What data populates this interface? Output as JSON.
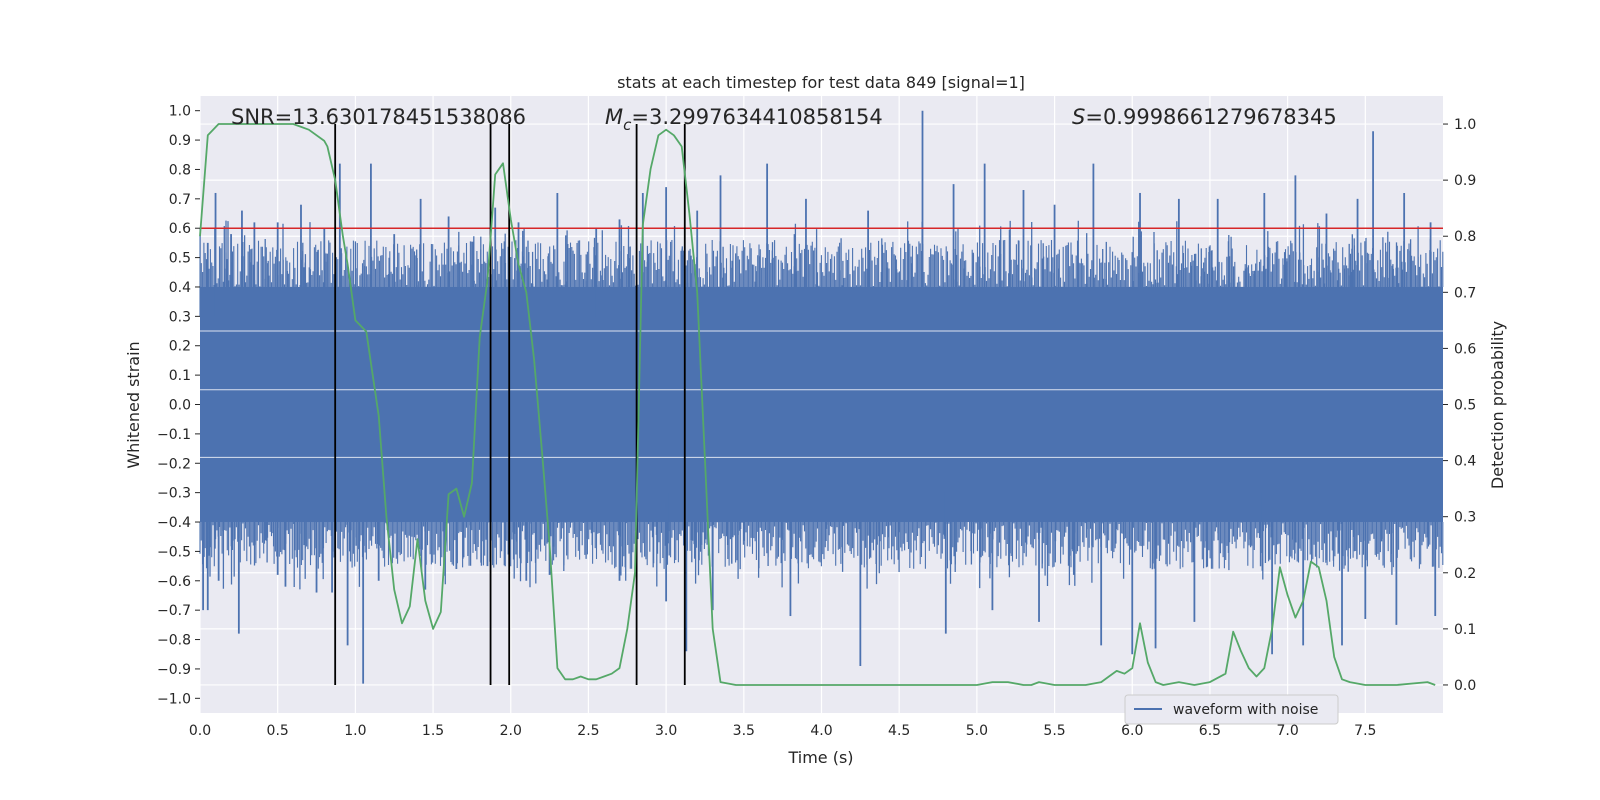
{
  "chart_data": {
    "type": "line",
    "title": "stats at each timestep for test data 849 [signal=1]",
    "xlabel": "Time (s)",
    "ylabel": "Whitened strain",
    "ylabel_right": "Detection probability",
    "xlim": [
      0,
      8
    ],
    "ylim": [
      -1.05,
      1.05
    ],
    "ylim_right": [
      -0.05,
      1.05
    ],
    "x_ticks": [
      "0.0",
      "0.5",
      "1.0",
      "1.5",
      "2.0",
      "2.5",
      "3.0",
      "3.5",
      "4.0",
      "4.5",
      "5.0",
      "5.5",
      "6.0",
      "6.5",
      "7.0",
      "7.5"
    ],
    "y_ticks": [
      "1.0",
      "0.9",
      "0.8",
      "0.7",
      "0.6",
      "0.5",
      "0.4",
      "0.3",
      "0.2",
      "0.1",
      "0.0",
      "−0.1",
      "−0.2",
      "−0.3",
      "−0.4",
      "−0.5",
      "−0.6",
      "−0.7",
      "−0.8",
      "−0.9",
      "−1.0"
    ],
    "y_ticks_right": [
      "1.0",
      "0.9",
      "0.8",
      "0.7",
      "0.6",
      "0.5",
      "0.4",
      "0.3",
      "0.2",
      "0.1",
      "0.0"
    ],
    "grid": true,
    "legend": {
      "placement": "lower-right",
      "entries": [
        "waveform with noise"
      ]
    },
    "annotations": {
      "snr": "SNR=13.630178451538086",
      "mc_symbol": "M",
      "mc_sub": "c",
      "mc_value": "=3.2997634410858154",
      "s_symbol": "S",
      "s_value": "=0.9998661279678345"
    },
    "threshold": {
      "value": 0.6,
      "color": "#d62728"
    },
    "vertical_lines": [
      0.87,
      1.87,
      1.99,
      2.81,
      3.12
    ],
    "colors": {
      "waveform": "#4c72b0",
      "probability": "#55a868",
      "threshold": "#d62728",
      "vlines": "#000000"
    },
    "waveform": {
      "name": "waveform with noise",
      "band_upper": 0.4,
      "band_lower": -0.4,
      "spikes_up": [
        [
          0.05,
          0.55
        ],
        [
          0.1,
          0.72
        ],
        [
          0.2,
          0.58
        ],
        [
          0.27,
          0.66
        ],
        [
          0.35,
          0.62
        ],
        [
          0.5,
          0.62
        ],
        [
          0.65,
          0.68
        ],
        [
          0.8,
          0.6
        ],
        [
          0.9,
          0.82
        ],
        [
          1.1,
          0.82
        ],
        [
          1.25,
          0.58
        ],
        [
          1.42,
          0.7
        ],
        [
          1.6,
          0.64
        ],
        [
          1.9,
          0.67
        ],
        [
          2.05,
          0.62
        ],
        [
          2.3,
          0.72
        ],
        [
          2.55,
          0.6
        ],
        [
          2.7,
          0.63
        ],
        [
          2.85,
          0.72
        ],
        [
          3.0,
          0.74
        ],
        [
          3.2,
          0.66
        ],
        [
          3.35,
          0.78
        ],
        [
          3.65,
          0.82
        ],
        [
          3.9,
          0.7
        ],
        [
          4.3,
          0.66
        ],
        [
          4.65,
          1.0
        ],
        [
          4.85,
          0.75
        ],
        [
          5.05,
          0.82
        ],
        [
          5.3,
          0.73
        ],
        [
          5.5,
          0.68
        ],
        [
          5.75,
          0.82
        ],
        [
          6.05,
          0.72
        ],
        [
          6.3,
          0.7
        ],
        [
          6.55,
          0.7
        ],
        [
          6.85,
          0.72
        ],
        [
          7.05,
          0.78
        ],
        [
          7.25,
          0.65
        ],
        [
          7.45,
          0.7
        ],
        [
          7.55,
          0.93
        ],
        [
          7.75,
          0.72
        ],
        [
          7.92,
          0.62
        ]
      ],
      "spikes_down": [
        [
          0.02,
          -0.7
        ],
        [
          0.05,
          -0.7
        ],
        [
          0.12,
          -0.6
        ],
        [
          0.25,
          -0.78
        ],
        [
          0.5,
          -0.58
        ],
        [
          0.55,
          -0.62
        ],
        [
          0.75,
          -0.64
        ],
        [
          0.85,
          -0.64
        ],
        [
          0.95,
          -0.82
        ],
        [
          1.05,
          -0.95
        ],
        [
          1.15,
          -0.6
        ],
        [
          1.45,
          -0.63
        ],
        [
          1.65,
          -0.56
        ],
        [
          1.85,
          -0.55
        ],
        [
          2.1,
          -0.6
        ],
        [
          2.25,
          -0.58
        ],
        [
          2.7,
          -0.6
        ],
        [
          3.0,
          -0.67
        ],
        [
          3.13,
          -0.84
        ],
        [
          3.3,
          -0.7
        ],
        [
          3.8,
          -0.72
        ],
        [
          4.25,
          -0.89
        ],
        [
          4.8,
          -0.78
        ],
        [
          5.1,
          -0.7
        ],
        [
          5.4,
          -0.74
        ],
        [
          5.8,
          -0.82
        ],
        [
          6.0,
          -0.85
        ],
        [
          6.15,
          -0.83
        ],
        [
          6.4,
          -0.74
        ],
        [
          6.9,
          -0.85
        ],
        [
          7.1,
          -0.82
        ],
        [
          7.35,
          -0.82
        ],
        [
          7.5,
          -0.73
        ],
        [
          7.7,
          -0.75
        ],
        [
          7.95,
          -0.72
        ]
      ]
    },
    "probability": {
      "x": [
        0.0,
        0.05,
        0.12,
        0.2,
        0.3,
        0.4,
        0.5,
        0.6,
        0.7,
        0.8,
        0.82,
        0.87,
        0.92,
        0.95,
        1.0,
        1.07,
        1.15,
        1.2,
        1.25,
        1.3,
        1.35,
        1.4,
        1.45,
        1.5,
        1.55,
        1.6,
        1.65,
        1.7,
        1.75,
        1.8,
        1.85,
        1.9,
        1.95,
        2.0,
        2.05,
        2.1,
        2.15,
        2.2,
        2.25,
        2.3,
        2.35,
        2.4,
        2.45,
        2.5,
        2.55,
        2.6,
        2.65,
        2.7,
        2.75,
        2.8,
        2.85,
        2.9,
        2.95,
        3.0,
        3.05,
        3.1,
        3.15,
        3.2,
        3.25,
        3.3,
        3.35,
        3.45,
        3.6,
        4.0,
        4.5,
        5.0,
        5.1,
        5.2,
        5.3,
        5.35,
        5.4,
        5.5,
        5.55,
        5.6,
        5.7,
        5.8,
        5.85,
        5.9,
        5.95,
        6.0,
        6.05,
        6.1,
        6.15,
        6.2,
        6.3,
        6.4,
        6.5,
        6.6,
        6.65,
        6.7,
        6.75,
        6.8,
        6.85,
        6.9,
        6.95,
        7.0,
        7.05,
        7.1,
        7.15,
        7.2,
        7.25,
        7.3,
        7.35,
        7.4,
        7.5,
        7.7,
        7.9,
        7.95
      ],
      "y": [
        0.8,
        0.98,
        1.0,
        1.0,
        1.0,
        1.0,
        1.0,
        1.0,
        0.99,
        0.97,
        0.96,
        0.9,
        0.8,
        0.75,
        0.65,
        0.63,
        0.48,
        0.3,
        0.17,
        0.11,
        0.14,
        0.26,
        0.15,
        0.1,
        0.13,
        0.34,
        0.35,
        0.3,
        0.36,
        0.62,
        0.72,
        0.91,
        0.93,
        0.83,
        0.75,
        0.7,
        0.58,
        0.42,
        0.25,
        0.03,
        0.01,
        0.01,
        0.015,
        0.01,
        0.01,
        0.015,
        0.02,
        0.03,
        0.1,
        0.2,
        0.82,
        0.92,
        0.98,
        0.99,
        0.98,
        0.96,
        0.84,
        0.7,
        0.4,
        0.1,
        0.005,
        0.0,
        0.0,
        0.0,
        0.0,
        0.0,
        0.005,
        0.005,
        0.0,
        0.0,
        0.005,
        0.0,
        0.0,
        0.0,
        0.0,
        0.005,
        0.015,
        0.025,
        0.02,
        0.03,
        0.11,
        0.04,
        0.005,
        0.0,
        0.005,
        0.0,
        0.005,
        0.02,
        0.095,
        0.06,
        0.03,
        0.015,
        0.03,
        0.1,
        0.21,
        0.16,
        0.12,
        0.15,
        0.22,
        0.21,
        0.15,
        0.05,
        0.01,
        0.005,
        0.0,
        0.0,
        0.005,
        0.0
      ]
    }
  }
}
